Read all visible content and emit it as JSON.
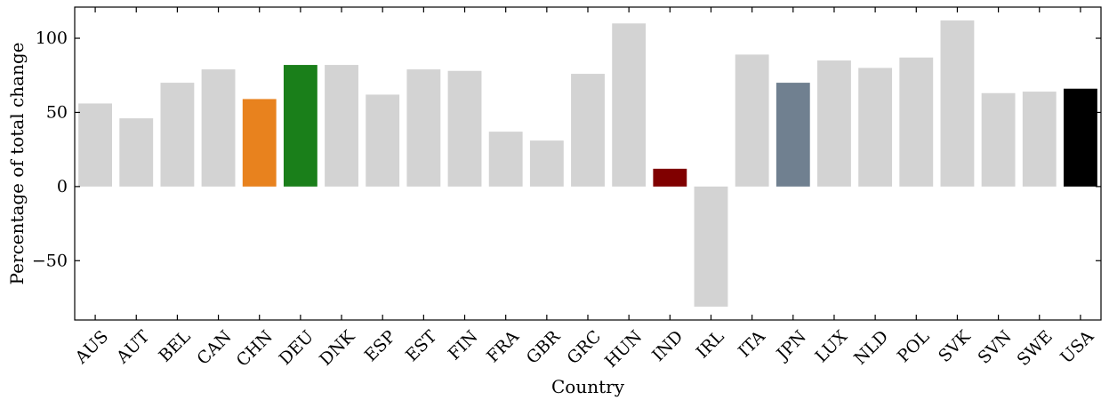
{
  "chart_data": {
    "type": "bar",
    "xlabel": "Country",
    "ylabel": "Percentage of total change",
    "ylim": [
      -90,
      121
    ],
    "yticks": [
      -50,
      0,
      50,
      100
    ],
    "yticklabels": [
      "−50",
      "0",
      "50",
      "100"
    ],
    "grid": false,
    "categories": [
      "AUS",
      "AUT",
      "BEL",
      "CAN",
      "CHN",
      "DEU",
      "DNK",
      "ESP",
      "EST",
      "FIN",
      "FRA",
      "GBR",
      "GRC",
      "HUN",
      "IND",
      "IRL",
      "ITA",
      "JPN",
      "LUX",
      "NLD",
      "POL",
      "SVK",
      "SVN",
      "SWE",
      "USA"
    ],
    "values": [
      56,
      46,
      70,
      79,
      59,
      82,
      82,
      62,
      79,
      78,
      37,
      31,
      76,
      110,
      12,
      -81,
      89,
      70,
      85,
      80,
      87,
      112,
      63,
      64,
      66
    ],
    "colors": [
      "#d3d3d3",
      "#d3d3d3",
      "#d3d3d3",
      "#d3d3d3",
      "#e8821e",
      "#1a7f1a",
      "#d3d3d3",
      "#d3d3d3",
      "#d3d3d3",
      "#d3d3d3",
      "#d3d3d3",
      "#d3d3d3",
      "#d3d3d3",
      "#d3d3d3",
      "#800000",
      "#d3d3d3",
      "#d3d3d3",
      "#708090",
      "#d3d3d3",
      "#d3d3d3",
      "#d3d3d3",
      "#d3d3d3",
      "#d3d3d3",
      "#d3d3d3",
      "#000000"
    ]
  }
}
